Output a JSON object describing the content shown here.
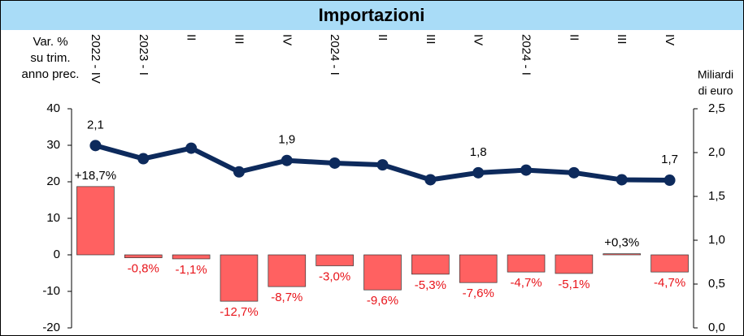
{
  "chart_data": {
    "type": "bar_line",
    "title": "Importazioni",
    "y_label": [
      "Var. %",
      "su trim.",
      "anno prec."
    ],
    "y2_label": [
      "Miliardi",
      "di euro"
    ],
    "categories": [
      "2022 - IV",
      "2023 - I",
      "II",
      "III",
      "IV",
      "2024 - I",
      "II",
      "III",
      "IV",
      "2024 - I",
      "II",
      "III",
      "IV"
    ],
    "series": [
      {
        "name": "Var. % su trim. anno prec.",
        "kind": "bar",
        "color": "#ff6161",
        "values": [
          18.7,
          -0.8,
          -1.1,
          -12.7,
          -8.7,
          -3.0,
          -9.6,
          -5.3,
          -7.6,
          -4.7,
          -5.1,
          0.3,
          -4.7
        ],
        "value_labels": [
          "+18,7%",
          "-0,8%",
          "-1,1%",
          "-12,7%",
          "-8,7%",
          "-3,0%",
          "-9,6%",
          "-5,3%",
          "-7,6%",
          "-4,7%",
          "-5,1%",
          "+0,3%",
          "-4,7%"
        ]
      },
      {
        "name": "Miliardi di euro",
        "kind": "line",
        "axis": "y2",
        "color": "#0d2a5c",
        "values": [
          2.08,
          1.93,
          2.05,
          1.78,
          1.91,
          1.88,
          1.86,
          1.69,
          1.77,
          1.8,
          1.77,
          1.69,
          1.685
        ],
        "value_labels": [
          "2,1",
          null,
          null,
          null,
          "1,9",
          null,
          null,
          null,
          "1,8",
          null,
          null,
          null,
          "1,7"
        ]
      }
    ],
    "ylim": [
      -20,
      40
    ],
    "yticks": [
      -20,
      -10,
      0,
      10,
      20,
      30,
      40
    ],
    "y2lim": [
      0,
      2.5
    ],
    "y2ticks": [
      {
        "value": 0,
        "label": "0,0"
      },
      {
        "value": 0.5,
        "label": "0,5"
      },
      {
        "value": 1,
        "label": "1,0"
      },
      {
        "value": 1.5,
        "label": "1,5"
      },
      {
        "value": 2,
        "label": "2,0"
      },
      {
        "value": 2.5,
        "label": "2,5"
      }
    ]
  }
}
